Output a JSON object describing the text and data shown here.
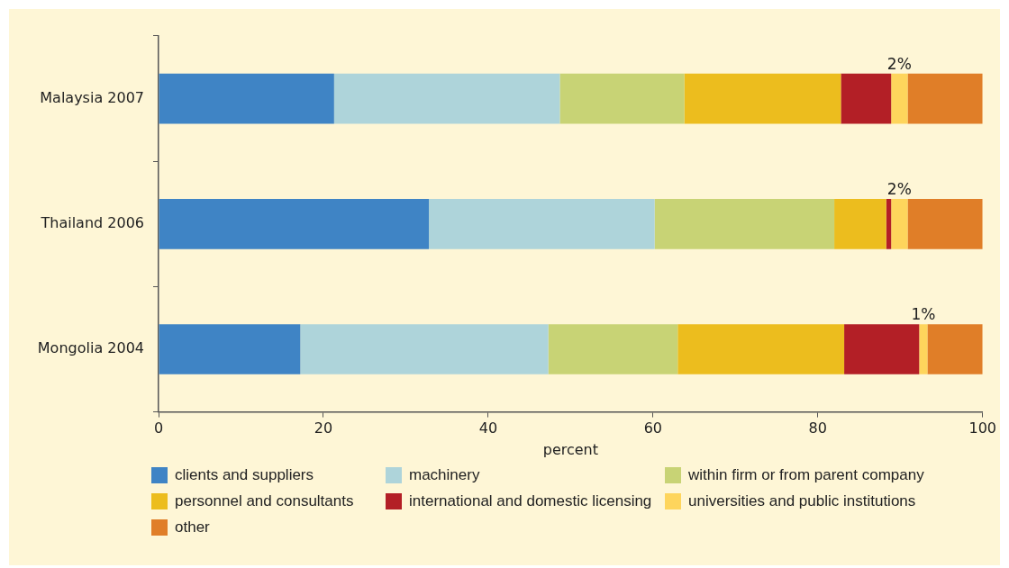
{
  "chart_data": {
    "type": "bar",
    "orientation": "horizontal",
    "stacked": true,
    "xlabel": "percent",
    "categories": [
      "Malaysia 2007",
      "Thailand 2006",
      "Mongolia 2004"
    ],
    "xlim": [
      0,
      100
    ],
    "xticks": [
      0,
      20,
      40,
      60,
      80,
      100
    ],
    "grid": false,
    "legend": "bottom",
    "series": [
      {
        "name": "clients and suppliers",
        "color": "#3f84c5",
        "values": [
          21.3,
          32.8,
          17.2
        ]
      },
      {
        "name": "machinery",
        "color": "#aed4da",
        "values": [
          27.4,
          27.4,
          30.1
        ]
      },
      {
        "name": "within firm or from parent company",
        "color": "#c8d375",
        "values": [
          15.1,
          21.8,
          15.7
        ]
      },
      {
        "name": "personnel and consultants",
        "color": "#ecbd1e",
        "values": [
          19.0,
          6.3,
          20.2
        ]
      },
      {
        "name": "international and domestic licensing",
        "color": "#b31f26",
        "values": [
          6.1,
          0.6,
          9.1
        ]
      },
      {
        "name": "universities and public institutions",
        "color": "#fed55c",
        "values": [
          2,
          2,
          1
        ],
        "value_labels": [
          "2%",
          "2%",
          "1%"
        ]
      },
      {
        "name": "other",
        "color": "#e07e28",
        "values": [
          9.1,
          9.1,
          6.7
        ]
      }
    ]
  }
}
